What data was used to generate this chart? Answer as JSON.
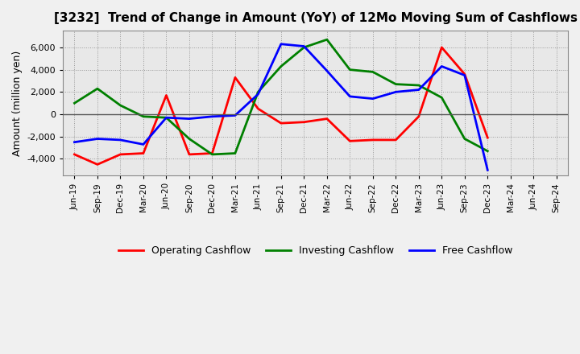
{
  "title": "[3232]  Trend of Change in Amount (YoY) of 12Mo Moving Sum of Cashflows",
  "ylabel": "Amount (million yen)",
  "x_labels": [
    "Jun-19",
    "Sep-19",
    "Dec-19",
    "Mar-20",
    "Jun-20",
    "Sep-20",
    "Dec-20",
    "Mar-21",
    "Jun-21",
    "Sep-21",
    "Dec-21",
    "Mar-22",
    "Jun-22",
    "Sep-22",
    "Dec-22",
    "Mar-23",
    "Jun-23",
    "Sep-23",
    "Dec-23",
    "Mar-24",
    "Jun-24",
    "Sep-24"
  ],
  "operating_cashflow": [
    -3600,
    -4500,
    -3600,
    -3500,
    1700,
    -3600,
    -3500,
    3300,
    500,
    -800,
    -700,
    -400,
    -2400,
    -2300,
    -2300,
    -200,
    6000,
    3600,
    -2100,
    null,
    null,
    null
  ],
  "investing_cashflow": [
    1000,
    2300,
    800,
    -200,
    -300,
    -2200,
    -3600,
    -3500,
    2000,
    4300,
    6000,
    6700,
    4000,
    3800,
    2700,
    2600,
    1500,
    -2200,
    -3300,
    null,
    null,
    null
  ],
  "free_cashflow": [
    -2500,
    -2200,
    -2300,
    -2700,
    -300,
    -400,
    -200,
    -100,
    1800,
    6300,
    6100,
    3900,
    1600,
    1400,
    2000,
    2200,
    4300,
    3500,
    -5000,
    null,
    null,
    null
  ],
  "ylim": [
    -5500,
    7500
  ],
  "yticks": [
    -4000,
    -2000,
    0,
    2000,
    4000,
    6000
  ],
  "colors": {
    "operating": "#ff0000",
    "investing": "#008000",
    "free": "#0000ff"
  },
  "legend_labels": [
    "Operating Cashflow",
    "Investing Cashflow",
    "Free Cashflow"
  ],
  "bg_color": "#f0f0f0",
  "plot_bg_color": "#e8e8e8",
  "grid_color": "#999999",
  "zero_line_color": "#555555",
  "line_width": 2.0,
  "title_fontsize": 11,
  "axis_label_fontsize": 9,
  "tick_fontsize": 8,
  "legend_fontsize": 9
}
